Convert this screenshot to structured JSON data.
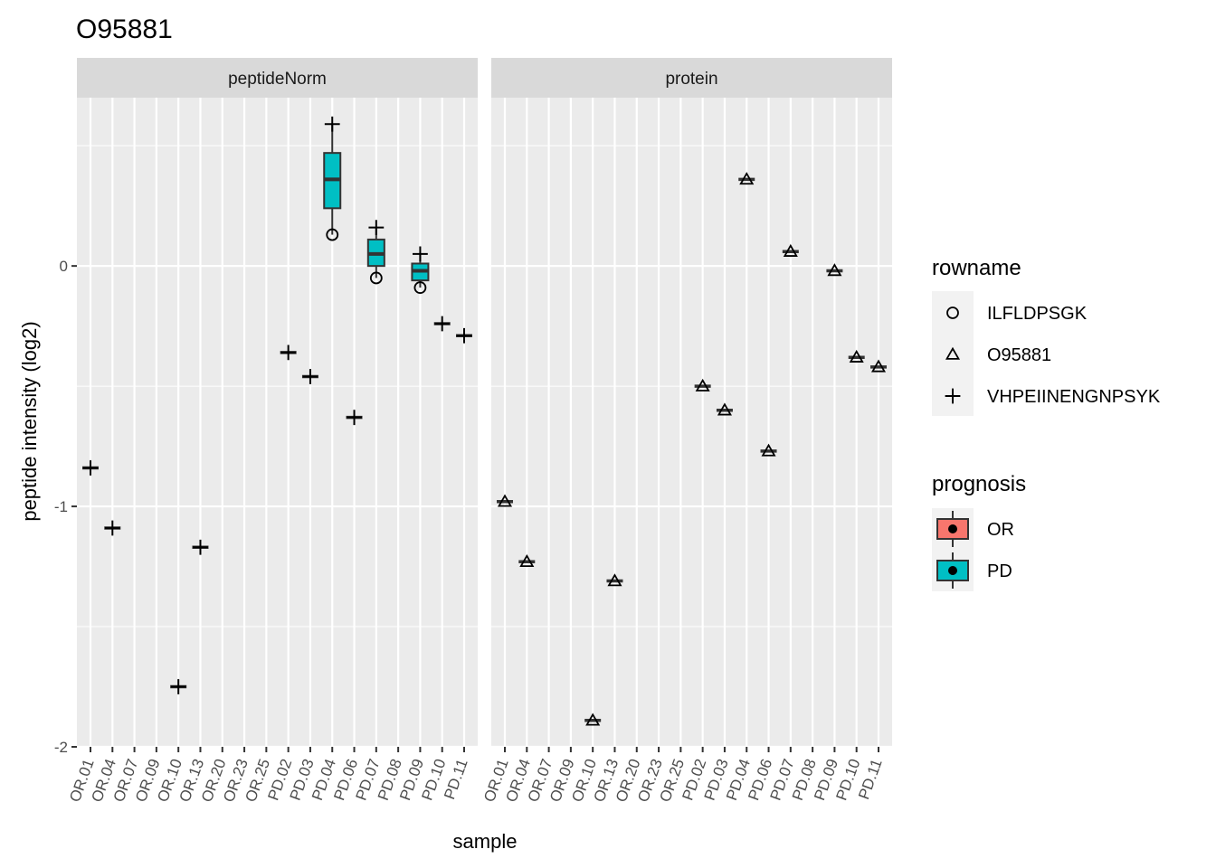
{
  "chart_data": {
    "type": "box",
    "title": "O95881",
    "xlabel": "sample",
    "ylabel": "peptide intensity (log2)",
    "ylim": [
      -2.0,
      0.7
    ],
    "y_ticks": [
      0,
      -1,
      -2
    ],
    "y_tick_labels": [
      "0",
      "-1",
      "-2"
    ],
    "grid": true,
    "categories": [
      "OR.01",
      "OR.04",
      "OR.07",
      "OR.09",
      "OR.10",
      "OR.13",
      "OR.20",
      "OR.23",
      "OR.25",
      "PD.02",
      "PD.03",
      "PD.04",
      "PD.06",
      "PD.07",
      "PD.08",
      "PD.09",
      "PD.10",
      "PD.11"
    ],
    "panels": [
      {
        "name": "peptideNorm",
        "points": [
          {
            "sample": "OR.01",
            "rowname": "VHPEIINENGNPSYK",
            "value": -0.84
          },
          {
            "sample": "OR.04",
            "rowname": "VHPEIINENGNPSYK",
            "value": -1.09
          },
          {
            "sample": "OR.10",
            "rowname": "VHPEIINENGNPSYK",
            "value": -1.75
          },
          {
            "sample": "OR.13",
            "rowname": "VHPEIINENGNPSYK",
            "value": -1.17
          },
          {
            "sample": "PD.02",
            "rowname": "VHPEIINENGNPSYK",
            "value": -0.36
          },
          {
            "sample": "PD.03",
            "rowname": "VHPEIINENGNPSYK",
            "value": -0.46
          },
          {
            "sample": "PD.04",
            "rowname": "VHPEIINENGNPSYK",
            "value": 0.59
          },
          {
            "sample": "PD.04",
            "rowname": "ILFLDPSGK",
            "value": 0.13
          },
          {
            "sample": "PD.06",
            "rowname": "VHPEIINENGNPSYK",
            "value": -0.63
          },
          {
            "sample": "PD.07",
            "rowname": "VHPEIINENGNPSYK",
            "value": 0.16
          },
          {
            "sample": "PD.07",
            "rowname": "ILFLDPSGK",
            "value": -0.05
          },
          {
            "sample": "PD.09",
            "rowname": "VHPEIINENGNPSYK",
            "value": 0.05
          },
          {
            "sample": "PD.09",
            "rowname": "ILFLDPSGK",
            "value": -0.09
          },
          {
            "sample": "PD.10",
            "rowname": "VHPEIINENGNPSYK",
            "value": -0.24
          },
          {
            "sample": "PD.11",
            "rowname": "VHPEIINENGNPSYK",
            "value": -0.29
          }
        ],
        "boxes": [
          {
            "sample": "PD.04",
            "prognosis": "PD",
            "min": 0.13,
            "q1": 0.24,
            "median": 0.36,
            "q3": 0.47,
            "max": 0.59
          },
          {
            "sample": "PD.07",
            "prognosis": "PD",
            "min": -0.05,
            "q1": 0.0,
            "median": 0.05,
            "q3": 0.11,
            "max": 0.16
          },
          {
            "sample": "PD.09",
            "prognosis": "PD",
            "min": -0.09,
            "q1": -0.06,
            "median": -0.02,
            "q3": 0.01,
            "max": 0.05
          }
        ]
      },
      {
        "name": "protein",
        "points": [
          {
            "sample": "OR.01",
            "rowname": "O95881",
            "value": -0.98
          },
          {
            "sample": "OR.04",
            "rowname": "O95881",
            "value": -1.23
          },
          {
            "sample": "OR.10",
            "rowname": "O95881",
            "value": -1.89
          },
          {
            "sample": "OR.13",
            "rowname": "O95881",
            "value": -1.31
          },
          {
            "sample": "PD.02",
            "rowname": "O95881",
            "value": -0.5
          },
          {
            "sample": "PD.03",
            "rowname": "O95881",
            "value": -0.6
          },
          {
            "sample": "PD.04",
            "rowname": "O95881",
            "value": 0.36
          },
          {
            "sample": "PD.06",
            "rowname": "O95881",
            "value": -0.77
          },
          {
            "sample": "PD.07",
            "rowname": "O95881",
            "value": 0.06
          },
          {
            "sample": "PD.09",
            "rowname": "O95881",
            "value": -0.02
          },
          {
            "sample": "PD.10",
            "rowname": "O95881",
            "value": -0.38
          },
          {
            "sample": "PD.11",
            "rowname": "O95881",
            "value": -0.42
          }
        ],
        "boxes": []
      }
    ],
    "legends": {
      "position": "right",
      "rowname": {
        "title": "rowname",
        "entries": [
          {
            "label": "ILFLDPSGK",
            "shape": "circle"
          },
          {
            "label": "O95881",
            "shape": "triangle"
          },
          {
            "label": "VHPEIINENGNPSYK",
            "shape": "plus"
          }
        ]
      },
      "prognosis": {
        "title": "prognosis",
        "entries": [
          {
            "label": "OR",
            "color": "#F8766D"
          },
          {
            "label": "PD",
            "color": "#00BFC4"
          }
        ]
      }
    },
    "colors": {
      "panel_bg": "#EBEBEB",
      "grid": "#FFFFFF",
      "strip_bg": "#D9D9D9",
      "OR": "#F8766D",
      "PD": "#00BFC4"
    }
  }
}
